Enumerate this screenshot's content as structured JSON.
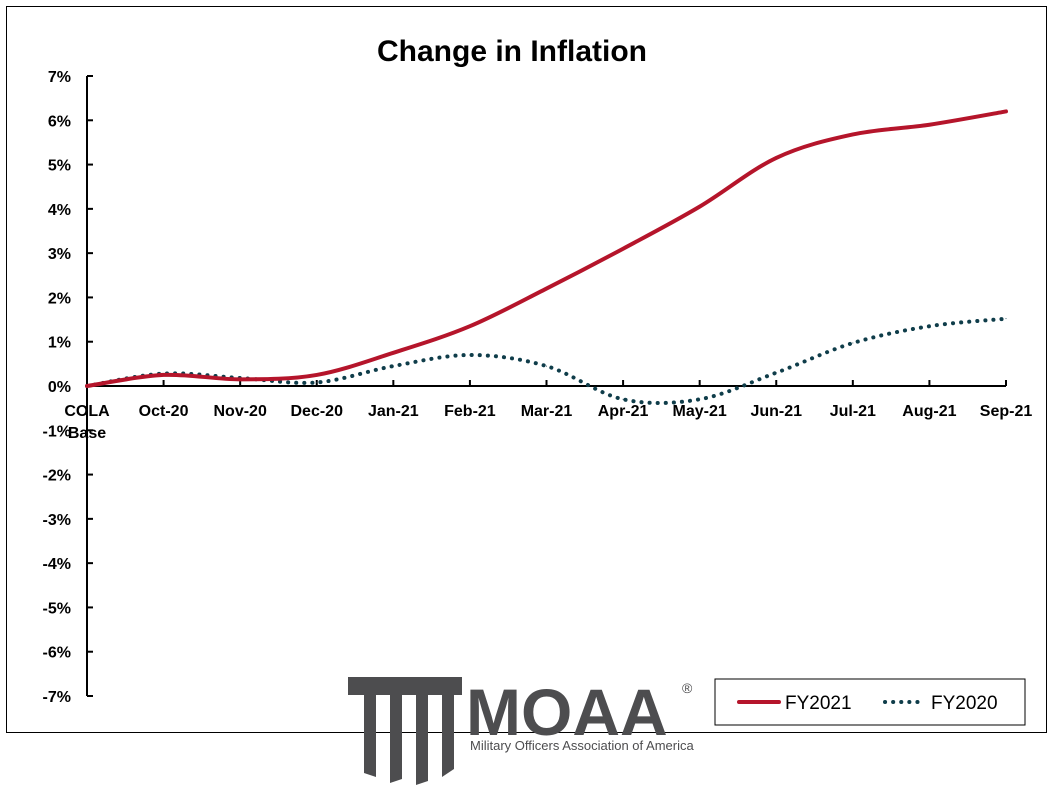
{
  "chart_data": {
    "type": "line",
    "title": "Change in Inflation",
    "xlabel": "",
    "ylabel": "",
    "categories": [
      "COLA Base",
      "Oct-20",
      "Nov-20",
      "Dec-20",
      "Jan-21",
      "Feb-21",
      "Mar-21",
      "Apr-21",
      "May-21",
      "Jun-21",
      "Jul-21",
      "Aug-21",
      "Sep-21"
    ],
    "series": [
      {
        "name": "FY2021",
        "color": "#b5152b",
        "style": "solid",
        "values": [
          0.0,
          0.25,
          0.15,
          0.25,
          0.75,
          1.35,
          2.2,
          3.1,
          4.05,
          5.15,
          5.68,
          5.9,
          6.2
        ]
      },
      {
        "name": "FY2020",
        "color": "#0f3d4a",
        "style": "dotted",
        "values": [
          0.0,
          0.28,
          0.18,
          0.08,
          0.45,
          0.7,
          0.45,
          -0.3,
          -0.3,
          0.3,
          0.97,
          1.35,
          1.52
        ]
      }
    ],
    "ylim": [
      -7,
      7
    ],
    "yticks": [
      "-7%",
      "-6%",
      "-5%",
      "-4%",
      "-3%",
      "-2%",
      "-1%",
      "0%",
      "1%",
      "2%",
      "3%",
      "4%",
      "5%",
      "6%",
      "7%"
    ],
    "grid": false,
    "legend": "bottom-right"
  },
  "logo": {
    "wordmark": "MOAA",
    "registered": "®",
    "tagline": "Military Officers Association of America"
  }
}
